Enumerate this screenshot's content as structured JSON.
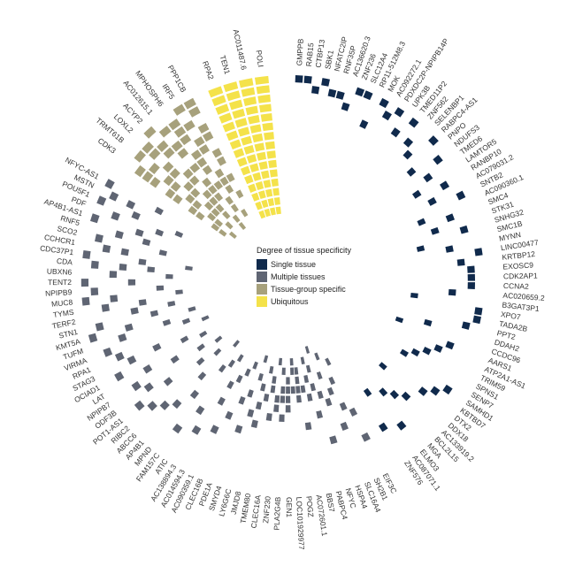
{
  "chart_data": {
    "type": "heatmap",
    "legend_title": "Degree of tissue specificity",
    "groups": [
      {
        "name": "Single tissue",
        "color": "#102a4c"
      },
      {
        "name": "Multiple tissues",
        "color": "#5f6573"
      },
      {
        "name": "Tissue-group specific",
        "color": "#a7a17c"
      },
      {
        "name": "Ubiquitous",
        "color": "#f4e24a"
      }
    ],
    "genes": [
      {
        "name": "GMPPB",
        "group": 0,
        "cells": [
          15
        ]
      },
      {
        "name": "RAB15",
        "group": 0,
        "cells": [
          15
        ]
      },
      {
        "name": "CTBP13",
        "group": 0,
        "cells": [
          14
        ]
      },
      {
        "name": "SBK1",
        "group": 0,
        "cells": [
          15
        ]
      },
      {
        "name": "NFATC2IP",
        "group": 0,
        "cells": [
          14
        ]
      },
      {
        "name": "RNF35P",
        "group": 0,
        "cells": [
          14
        ]
      },
      {
        "name": "AC136620.3",
        "group": 0,
        "cells": [
          13
        ]
      },
      {
        "name": "ZNF236",
        "group": 0,
        "cells": [
          15
        ]
      },
      {
        "name": "SLC12A4",
        "group": 0,
        "cells": [
          15
        ]
      },
      {
        "name": "RP11-512M8.3",
        "group": 0,
        "cells": [
          12
        ]
      },
      {
        "name": "MOK",
        "group": 0,
        "cells": [
          15
        ]
      },
      {
        "name": "AC092272.1",
        "group": 0,
        "cells": [
          14
        ]
      },
      {
        "name": "PDXDC2P-NPIPB14P",
        "group": 0,
        "cells": [
          15
        ]
      },
      {
        "name": "UPK3B",
        "group": 0,
        "cells": [
          13
        ]
      },
      {
        "name": "TMED11P2",
        "group": 0,
        "cells": [
          15
        ]
      },
      {
        "name": "ZNF562",
        "group": 0,
        "cells": [
          13
        ]
      },
      {
        "name": "SELENBP1",
        "group": 0,
        "cells": [
          12
        ]
      },
      {
        "name": "RABPC4-AS1",
        "group": 0,
        "cells": [
          15
        ]
      },
      {
        "name": "PNPO",
        "group": 0,
        "cells": [
          11
        ]
      },
      {
        "name": "NDUFS3",
        "group": 0,
        "cells": [
          14
        ]
      },
      {
        "name": "TMED6",
        "group": 0,
        "cells": [
          12
        ]
      },
      {
        "name": "LAMTOR5",
        "group": 0,
        "cells": [
          10
        ]
      },
      {
        "name": "RANBP10",
        "group": 0,
        "cells": [
          13
        ]
      },
      {
        "name": "AC079031.2",
        "group": 0,
        "cells": [
          11
        ]
      },
      {
        "name": "SNTB2",
        "group": 0,
        "cells": [
          14
        ]
      },
      {
        "name": "AC090360.1",
        "group": 0,
        "cells": [
          9
        ]
      },
      {
        "name": "SMC4",
        "group": 0,
        "cells": [
          12
        ]
      },
      {
        "name": "STK31",
        "group": 0,
        "cells": [
          10
        ]
      },
      {
        "name": "SNHG32",
        "group": 0,
        "cells": [
          13
        ]
      },
      {
        "name": "SMC1B",
        "group": 0,
        "cells": [
          8
        ]
      },
      {
        "name": "MYNN",
        "group": 0,
        "cells": [
          11
        ]
      },
      {
        "name": "LINC00477",
        "group": 0,
        "cells": [
          14
        ]
      },
      {
        "name": "KRTBP12",
        "group": 0,
        "cells": [
          12
        ]
      },
      {
        "name": "EXOSC9",
        "group": 0,
        "cells": [
          13
        ]
      },
      {
        "name": "CDK2AP1",
        "group": 0,
        "cells": [
          13
        ]
      },
      {
        "name": "CCNA2",
        "group": 0,
        "cells": [
          13
        ]
      },
      {
        "name": "AC020659.2",
        "group": 0,
        "cells": [
          11
        ]
      },
      {
        "name": "B3GAT3P1",
        "group": 0,
        "cells": [
          7
        ]
      },
      {
        "name": "XPO7",
        "group": 0,
        "cells": [
          14
        ]
      },
      {
        "name": "TADA2B",
        "group": 0,
        "cells": [
          14
        ]
      },
      {
        "name": "PPT2",
        "group": 0,
        "cells": [
          13
        ]
      },
      {
        "name": "DDAH2",
        "group": 0,
        "cells": [
          9
        ]
      },
      {
        "name": "CCDC96",
        "group": 0,
        "cells": [
          6
        ]
      },
      {
        "name": "AARS1",
        "group": 0,
        "cells": [
          12
        ]
      },
      {
        "name": "ATP2A1-AS1",
        "group": 0,
        "cells": [
          11
        ]
      },
      {
        "name": "TRIM59",
        "group": 0,
        "cells": [
          10
        ]
      },
      {
        "name": "SPNS1",
        "group": 0,
        "cells": [
          9
        ]
      },
      {
        "name": "SENP7",
        "group": 0,
        "cells": [
          8
        ]
      },
      {
        "name": "SAMHD1",
        "group": 0,
        "cells": [
          14
        ]
      },
      {
        "name": "KBTBD7",
        "group": 0,
        "cells": [
          13
        ]
      },
      {
        "name": "DTX2",
        "group": 0,
        "cells": [
          12
        ]
      },
      {
        "name": "DDX18",
        "group": 0,
        "cells": [
          7
        ]
      },
      {
        "name": "AC133919.2",
        "group": 0,
        "cells": [
          11
        ]
      },
      {
        "name": "BCL2L15",
        "group": 0,
        "cells": [
          10
        ]
      },
      {
        "name": "MGA",
        "group": 0,
        "cells": [
          9
        ]
      },
      {
        "name": "ELMO3",
        "group": 0,
        "cells": [
          13
        ]
      },
      {
        "name": "AC087071.1",
        "group": 0,
        "cells": [
          8
        ]
      },
      {
        "name": "ZNF576",
        "group": 0,
        "cells": [
          12
        ]
      },
      {
        "name": "EIF3C",
        "group": 1,
        "cells": [
          3,
          9,
          12
        ]
      },
      {
        "name": "SH2B1",
        "group": 1,
        "cells": [
          5,
          8
        ]
      },
      {
        "name": "SLC16A4",
        "group": 1,
        "cells": [
          2,
          6,
          10
        ]
      },
      {
        "name": "HSPA4",
        "group": 1,
        "cells": [
          4,
          7
        ]
      },
      {
        "name": "NFYC",
        "group": 1,
        "cells": [
          1,
          6,
          11
        ]
      },
      {
        "name": "PABPC4",
        "group": 1,
        "cells": [
          3,
          5,
          8
        ]
      },
      {
        "name": "BBS7",
        "group": 1,
        "cells": [
          2,
          4,
          6
        ]
      },
      {
        "name": "AC072601.1",
        "group": 1,
        "cells": [
          5,
          9
        ]
      },
      {
        "name": "POGZ",
        "group": 1,
        "cells": [
          3,
          4,
          5,
          6
        ]
      },
      {
        "name": "LOC101929977",
        "group": 1,
        "cells": [
          2,
          3,
          5
        ]
      },
      {
        "name": "GEN1",
        "group": 1,
        "cells": [
          4,
          5,
          6,
          7
        ]
      },
      {
        "name": "PLA2G4B",
        "group": 1,
        "cells": [
          3,
          5,
          6,
          8
        ]
      },
      {
        "name": "ZNF230",
        "group": 1,
        "cells": [
          2,
          6,
          7
        ]
      },
      {
        "name": "CLEC16A",
        "group": 1,
        "cells": [
          4,
          5,
          8
        ]
      },
      {
        "name": "TMEM80",
        "group": 1,
        "cells": [
          3,
          6
        ]
      },
      {
        "name": "JMJD8",
        "group": 1,
        "cells": [
          5,
          7,
          9
        ]
      },
      {
        "name": "LY6G6C",
        "group": 1,
        "cells": [
          2,
          4,
          8
        ]
      },
      {
        "name": "SMYD4",
        "group": 1,
        "cells": [
          6,
          10
        ]
      },
      {
        "name": "PDE1A",
        "group": 1,
        "cells": [
          3,
          7
        ]
      },
      {
        "name": "CLEC16B",
        "group": 1,
        "cells": [
          4,
          9
        ]
      },
      {
        "name": "AC090359.1",
        "group": 1,
        "cells": [
          5,
          11
        ]
      },
      {
        "name": "AC014594.3",
        "group": 1,
        "cells": [
          6,
          8
        ]
      },
      {
        "name": "AC138894.3",
        "group": 1,
        "cells": [
          3,
          12
        ]
      },
      {
        "name": "ATIC",
        "group": 1,
        "cells": [
          4,
          10
        ]
      },
      {
        "name": "FAM157C",
        "group": 1,
        "cells": [
          5,
          13
        ]
      },
      {
        "name": "MPND",
        "group": 1,
        "cells": [
          2,
          9
        ]
      },
      {
        "name": "AP4B1",
        "group": 1,
        "cells": [
          7,
          11
        ]
      },
      {
        "name": "ABCC6",
        "group": 1,
        "cells": [
          4,
          12
        ]
      },
      {
        "name": "RIBC2",
        "group": 1,
        "cells": [
          6,
          13
        ]
      },
      {
        "name": "POT1-AS1",
        "group": 1,
        "cells": [
          3,
          10,
          14
        ]
      },
      {
        "name": "ODF3B",
        "group": 1,
        "cells": [
          5,
          12
        ]
      },
      {
        "name": "NPIPB7",
        "group": 1,
        "cells": [
          8,
          13
        ]
      },
      {
        "name": "LAT",
        "group": 1,
        "cells": [
          4,
          11
        ]
      },
      {
        "name": "OCIAD1",
        "group": 1,
        "cells": [
          6,
          14
        ]
      },
      {
        "name": "STAG3",
        "group": 1,
        "cells": [
          9,
          12
        ]
      },
      {
        "name": "RPA1",
        "group": 1,
        "cells": [
          3,
          13
        ]
      },
      {
        "name": "VIRMA",
        "group": 1,
        "cells": [
          5,
          14
        ]
      },
      {
        "name": "TUFM",
        "group": 1,
        "cells": [
          7,
          12
        ]
      },
      {
        "name": "KMT5A",
        "group": 1,
        "cells": [
          4,
          11,
          15
        ]
      },
      {
        "name": "STN1",
        "group": 1,
        "cells": [
          8,
          14
        ]
      },
      {
        "name": "TERF2",
        "group": 1,
        "cells": [
          6,
          10
        ]
      },
      {
        "name": "TYMS",
        "group": 1,
        "cells": [
          9,
          13
        ]
      },
      {
        "name": "MUC8",
        "group": 1,
        "cells": [
          5,
          12,
          15
        ]
      },
      {
        "name": "NPIPB9",
        "group": 1,
        "cells": [
          7,
          14
        ]
      },
      {
        "name": "TENT2",
        "group": 1,
        "cells": [
          10,
          15
        ]
      },
      {
        "name": "UBXN6",
        "group": 1,
        "cells": [
          6,
          12
        ]
      },
      {
        "name": "CDA",
        "group": 1,
        "cells": [
          8,
          11,
          14
        ]
      },
      {
        "name": "CDC37P1",
        "group": 1,
        "cells": [
          4,
          9,
          15
        ]
      },
      {
        "name": "CCHCR1",
        "group": 1,
        "cells": [
          11,
          13
        ]
      },
      {
        "name": "SCO2",
        "group": 1,
        "cells": [
          7,
          14
        ]
      },
      {
        "name": "RNF5",
        "group": 1,
        "cells": [
          9,
          12
        ]
      },
      {
        "name": "AP4B1-AS1",
        "group": 1,
        "cells": [
          10,
          15
        ]
      },
      {
        "name": "PDF",
        "group": 1,
        "cells": [
          8,
          13
        ]
      },
      {
        "name": "POU5F1",
        "group": 1,
        "cells": [
          6,
          11,
          15
        ]
      },
      {
        "name": "MSTN",
        "group": 1,
        "cells": [
          12,
          14
        ]
      },
      {
        "name": "NFYC-AS1",
        "group": 1,
        "cells": [
          9,
          15
        ]
      },
      {
        "name": "CDK3",
        "group": 2,
        "cells": [
          2,
          3,
          5,
          6,
          8,
          9,
          11,
          12,
          13
        ]
      },
      {
        "name": "TRMT61B",
        "group": 2,
        "cells": [
          1,
          3,
          4,
          6,
          7,
          9,
          10,
          12,
          14
        ]
      },
      {
        "name": "LOXL2",
        "group": 2,
        "cells": [
          2,
          4,
          5,
          7,
          8,
          10,
          11,
          13,
          14
        ]
      },
      {
        "name": "ACYP2",
        "group": 2,
        "cells": [
          3,
          4,
          5,
          6,
          8,
          9,
          12,
          13,
          15
        ]
      },
      {
        "name": "AC012615.1",
        "group": 2,
        "cells": [
          1,
          2,
          5,
          6,
          7,
          9,
          11,
          12,
          14
        ]
      },
      {
        "name": "MPHOSPH6",
        "group": 2,
        "cells": [
          3,
          4,
          6,
          8,
          9,
          10,
          12,
          13,
          14
        ]
      },
      {
        "name": "IRF5",
        "group": 2,
        "cells": [
          2,
          5,
          6,
          7,
          10,
          11,
          13,
          15
        ]
      },
      {
        "name": "PPP1CB",
        "group": 2,
        "cells": [
          4,
          6,
          8,
          9,
          11,
          12,
          14,
          15
        ]
      },
      {
        "name": "RPA2",
        "group": 3,
        "cells": [
          1,
          2,
          3,
          4,
          5,
          6,
          7,
          8,
          9,
          10,
          11,
          12,
          13,
          14,
          15
        ]
      },
      {
        "name": "TEN1",
        "group": 3,
        "cells": [
          1,
          2,
          3,
          4,
          5,
          6,
          7,
          8,
          9,
          10,
          11,
          12,
          13,
          14,
          15
        ]
      },
      {
        "name": "AC011487.6",
        "group": 3,
        "cells": [
          1,
          2,
          3,
          4,
          5,
          6,
          7,
          8,
          9,
          10,
          11,
          12,
          13,
          14,
          15
        ]
      },
      {
        "name": "POLI",
        "group": 3,
        "cells": [
          1,
          2,
          3,
          4,
          5,
          6,
          7,
          8,
          9,
          10,
          11,
          12,
          13,
          14,
          15
        ]
      }
    ]
  }
}
